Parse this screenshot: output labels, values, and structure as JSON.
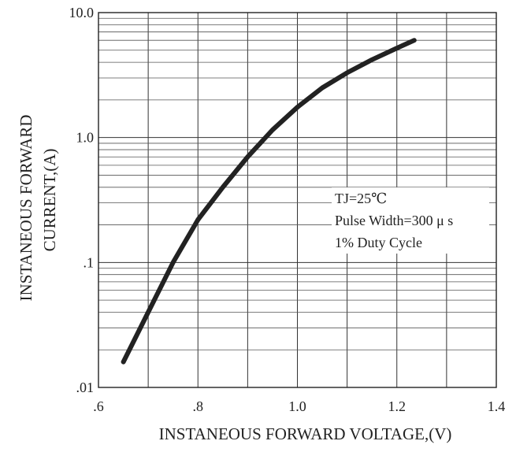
{
  "chart_data": {
    "type": "line",
    "title": "",
    "xlabel": "INSTANEOUS FORWARD VOLTAGE,(V)",
    "ylabel_lines": [
      "INSTANEOUS FORWARD",
      "CURRENT,(A)"
    ],
    "xlim": [
      0.6,
      1.4
    ],
    "ylim": [
      0.01,
      10.0
    ],
    "yscale": "log",
    "grid": true,
    "x_ticks": [
      {
        "value": 0.6,
        "label": ".6"
      },
      {
        "value": 0.8,
        "label": ".8"
      },
      {
        "value": 1.0,
        "label": "1.0"
      },
      {
        "value": 1.2,
        "label": "1.2"
      },
      {
        "value": 1.4,
        "label": "1.4"
      }
    ],
    "y_ticks": [
      {
        "value": 0.01,
        "label": ".01"
      },
      {
        "value": 0.1,
        "label": ".1"
      },
      {
        "value": 1.0,
        "label": "1.0"
      },
      {
        "value": 10.0,
        "label": "10.0"
      }
    ],
    "x_minor_step": 0.1,
    "series": [
      {
        "color": "#222222",
        "x": [
          0.65,
          0.7,
          0.75,
          0.8,
          0.85,
          0.9,
          0.95,
          1.0,
          1.05,
          1.1,
          1.15,
          1.2,
          1.235
        ],
        "y": [
          0.016,
          0.04,
          0.1,
          0.22,
          0.4,
          0.7,
          1.15,
          1.75,
          2.5,
          3.3,
          4.2,
          5.2,
          6.0
        ]
      }
    ],
    "annotations": [
      "TJ=25℃",
      "Pulse Width=300 μ s",
      "1% Duty Cycle"
    ]
  }
}
